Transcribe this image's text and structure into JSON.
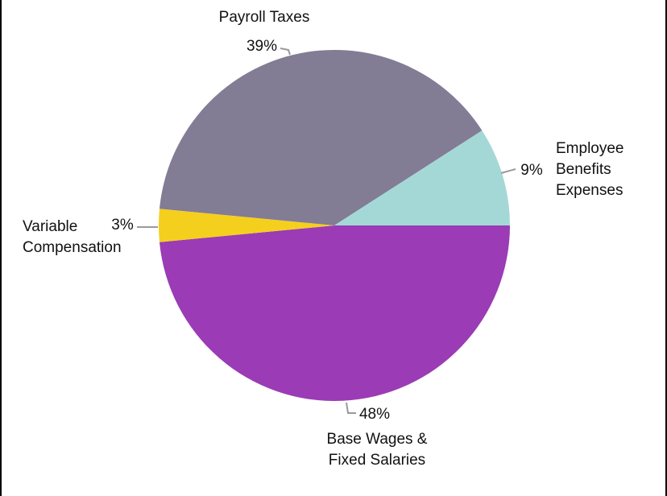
{
  "chart_data": {
    "type": "pie",
    "categories": [
      "Base Wages & Fixed Salaries",
      "Variable Compensation",
      "Payroll Taxes",
      "Employee Benefits Expenses"
    ],
    "values": [
      48,
      3,
      39,
      9
    ],
    "value_labels": [
      "48%",
      "3%",
      "39%",
      "9%"
    ],
    "colors": [
      "#9b3bb5",
      "#f5cf1e",
      "#827c95",
      "#a4d8d6"
    ]
  }
}
